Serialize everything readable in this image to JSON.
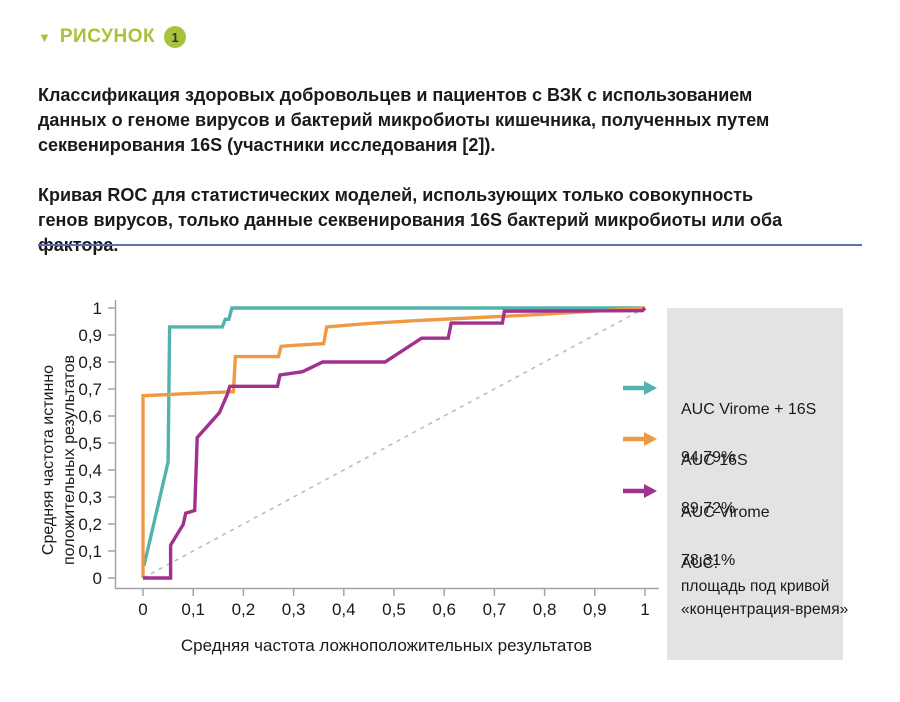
{
  "header": {
    "label": "РИСУНОК",
    "number": "1"
  },
  "description": {
    "paragraph1": [
      "Классификация здоровых добровольцев и пациентов с ВЗК с использованием",
      "данных о геноме вирусов и бактерий микробиоты кишечника, полученных путем",
      "секвенирования 16S (участники исследования [2])."
    ],
    "paragraph2": [
      "Кривая ROC для статистических моделей, использующих только совокупность",
      "генов вирусов, только данные секвенирования 16S бактерий микробиоты или оба",
      "фактора."
    ]
  },
  "chart_data": {
    "type": "line",
    "subtype": "roc-curves",
    "title": "",
    "xlabel": "Средняя частота ложноположительных результатов",
    "ylabel": [
      "Средняя частота истинно",
      "положительных результатов"
    ],
    "xlim": [
      0,
      1
    ],
    "ylim": [
      0,
      1
    ],
    "grid": false,
    "legend_position": "right",
    "x_ticks": [
      "0",
      "0,1",
      "0,2",
      "0,3",
      "0,4",
      "0,5",
      "0,6",
      "0,7",
      "0,8",
      "0,9",
      "1"
    ],
    "y_ticks": [
      "0",
      "0,1",
      "0,2",
      "0,3",
      "0,4",
      "0,5",
      "0,6",
      "0,7",
      "0,8",
      "0,9",
      "1"
    ],
    "reference_line": {
      "style": "dashed",
      "color": "#bbbbbb",
      "points": [
        [
          0,
          0
        ],
        [
          1,
          1
        ]
      ]
    },
    "series": [
      {
        "id": "virome-16s",
        "name": "AUC Virome + 16S",
        "auc": "94,79%",
        "color": "#52b3ae",
        "points": [
          [
            0.002,
            0.045
          ],
          [
            0.05,
            0.43
          ],
          [
            0.053,
            0.93
          ],
          [
            0.158,
            0.93
          ],
          [
            0.164,
            0.958
          ],
          [
            0.171,
            0.958
          ],
          [
            0.177,
            1.0
          ],
          [
            1,
            1.0
          ]
        ]
      },
      {
        "id": "16s",
        "name": "AUC 16S",
        "auc": "89,72%",
        "color": "#ef9a42",
        "points": [
          [
            0,
            0
          ],
          [
            0,
            0.675
          ],
          [
            0.09,
            0.683
          ],
          [
            0.18,
            0.69
          ],
          [
            0.184,
            0.82
          ],
          [
            0.27,
            0.82
          ],
          [
            0.275,
            0.858
          ],
          [
            0.302,
            0.862
          ],
          [
            0.36,
            0.868
          ],
          [
            0.366,
            0.93
          ],
          [
            0.45,
            0.943
          ],
          [
            0.55,
            0.954
          ],
          [
            0.65,
            0.963
          ],
          [
            0.8,
            0.977
          ],
          [
            1,
            1.0
          ]
        ]
      },
      {
        "id": "virome",
        "name": "AUC Virome",
        "auc": "78,31%",
        "color": "#a1308f",
        "points": [
          [
            0,
            0
          ],
          [
            0.055,
            0
          ],
          [
            0.055,
            0.122
          ],
          [
            0.08,
            0.198
          ],
          [
            0.085,
            0.24
          ],
          [
            0.103,
            0.25
          ],
          [
            0.108,
            0.52
          ],
          [
            0.152,
            0.612
          ],
          [
            0.168,
            0.68
          ],
          [
            0.173,
            0.71
          ],
          [
            0.268,
            0.71
          ],
          [
            0.273,
            0.752
          ],
          [
            0.318,
            0.764
          ],
          [
            0.358,
            0.8
          ],
          [
            0.482,
            0.8
          ],
          [
            0.555,
            0.888
          ],
          [
            0.608,
            0.888
          ],
          [
            0.614,
            0.944
          ],
          [
            0.716,
            0.944
          ],
          [
            0.72,
            0.988
          ],
          [
            0.995,
            0.99
          ],
          [
            1,
            1.0
          ]
        ]
      }
    ]
  },
  "legend": {
    "items": [
      {
        "label": "AUC Virome + 16S",
        "value": "94,79%",
        "color": "#52b3ae"
      },
      {
        "label": "AUC 16S",
        "value": "89,72%",
        "color": "#ef9a42"
      },
      {
        "label": "AUC Virome",
        "value": "78,31%",
        "color": "#a1308f"
      }
    ],
    "note": [
      "AUC:",
      "площадь под кривой",
      "«концентрация-время»"
    ]
  },
  "colors": {
    "accent_green": "#a7c33d",
    "badge_number": "#333333",
    "divider": "#5e6fb4",
    "legend_bg": "#e3e3e3",
    "axis": "#a3a3a3",
    "text": "#1a1a1a"
  }
}
